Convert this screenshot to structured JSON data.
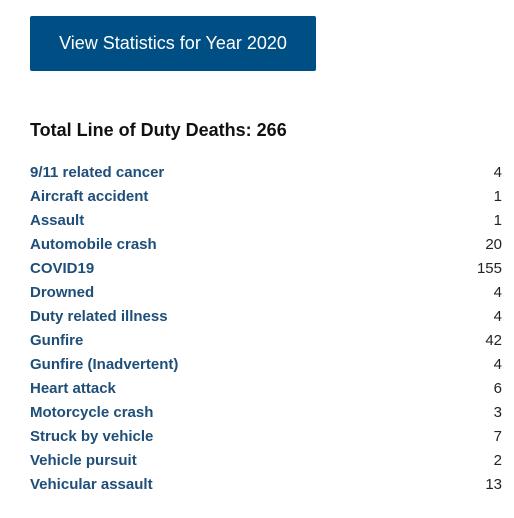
{
  "button": {
    "label": "View Statistics for Year 2020"
  },
  "summary": {
    "heading": "Total Line of Duty Deaths: 266"
  },
  "causes": [
    {
      "label": "9/11 related cancer",
      "count": "4"
    },
    {
      "label": "Aircraft accident",
      "count": "1"
    },
    {
      "label": "Assault",
      "count": "1"
    },
    {
      "label": "Automobile crash",
      "count": "20"
    },
    {
      "label": "COVID19",
      "count": "155"
    },
    {
      "label": "Drowned",
      "count": "4"
    },
    {
      "label": "Duty related illness",
      "count": "4"
    },
    {
      "label": "Gunfire",
      "count": "42"
    },
    {
      "label": "Gunfire (Inadvertent)",
      "count": "4"
    },
    {
      "label": "Heart attack",
      "count": "6"
    },
    {
      "label": "Motorcycle crash",
      "count": "3"
    },
    {
      "label": "Struck by vehicle",
      "count": "7"
    },
    {
      "label": "Vehicle pursuit",
      "count": "2"
    },
    {
      "label": "Vehicular assault",
      "count": "13"
    }
  ],
  "colors": {
    "button_bg": "#004f84",
    "link": "#1f4e79"
  }
}
